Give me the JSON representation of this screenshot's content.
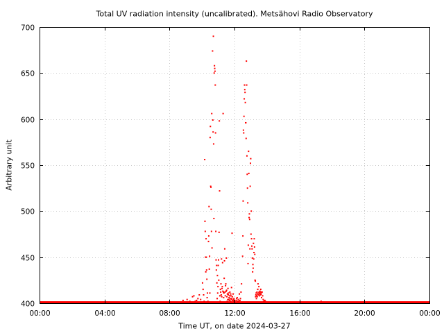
{
  "chart_data": {
    "type": "scatter",
    "title": "Total UV radiation intensity (uncalibrated). Metsähovi Radio Observatory",
    "xlabel": "Time UT, on date 2024-03-27",
    "ylabel": "Arbitrary unit",
    "xlim": [
      "00:00",
      "24:00"
    ],
    "ylim": [
      400,
      700
    ],
    "grid": true,
    "color": "#ff0000",
    "x_ticks": [
      "00:00",
      "04:00",
      "08:00",
      "12:00",
      "16:00",
      "20:00",
      "00:00"
    ],
    "y_ticks": [
      "400",
      "450",
      "500",
      "550",
      "600",
      "650",
      "700"
    ],
    "baseline": {
      "value": 401,
      "from": "00:00",
      "to": "24:00"
    },
    "points": [
      [
        "08:50",
        403
      ],
      [
        "09:05",
        404
      ],
      [
        "09:10",
        401
      ],
      [
        "09:15",
        402
      ],
      [
        "09:25",
        407
      ],
      [
        "09:30",
        408
      ],
      [
        "09:35",
        402
      ],
      [
        "09:40",
        403
      ],
      [
        "09:45",
        405
      ],
      [
        "09:50",
        409
      ],
      [
        "09:55",
        404
      ],
      [
        "10:00",
        401
      ],
      [
        "10:02",
        422
      ],
      [
        "10:04",
        415
      ],
      [
        "10:06",
        409
      ],
      [
        "10:08",
        402
      ],
      [
        "10:10",
        556
      ],
      [
        "10:11",
        489
      ],
      [
        "10:12",
        478
      ],
      [
        "10:13",
        450
      ],
      [
        "10:14",
        434
      ],
      [
        "10:15",
        470
      ],
      [
        "10:16",
        450
      ],
      [
        "10:17",
        436
      ],
      [
        "10:18",
        426
      ],
      [
        "10:19",
        406
      ],
      [
        "10:20",
        411
      ],
      [
        "10:22",
        402
      ],
      [
        "10:24",
        467
      ],
      [
        "10:25",
        473
      ],
      [
        "10:26",
        505
      ],
      [
        "10:27",
        437
      ],
      [
        "10:28",
        451
      ],
      [
        "10:29",
        411
      ],
      [
        "10:30",
        580
      ],
      [
        "10:31",
        592
      ],
      [
        "10:32",
        527
      ],
      [
        "10:33",
        526
      ],
      [
        "10:34",
        502
      ],
      [
        "10:35",
        478
      ],
      [
        "10:36",
        606
      ],
      [
        "10:37",
        460
      ],
      [
        "10:38",
        400
      ],
      [
        "10:39",
        674
      ],
      [
        "10:40",
        599
      ],
      [
        "10:41",
        586
      ],
      [
        "10:42",
        690
      ],
      [
        "10:43",
        573
      ],
      [
        "10:44",
        492
      ],
      [
        "10:45",
        650
      ],
      [
        "10:46",
        658
      ],
      [
        "10:47",
        655
      ],
      [
        "10:48",
        652
      ],
      [
        "10:49",
        637
      ],
      [
        "10:50",
        585
      ],
      [
        "10:51",
        478
      ],
      [
        "10:52",
        447
      ],
      [
        "10:53",
        436
      ],
      [
        "10:54",
        441
      ],
      [
        "10:55",
        422
      ],
      [
        "10:56",
        405
      ],
      [
        "10:57",
        430
      ],
      [
        "10:58",
        411
      ],
      [
        "10:59",
        418
      ],
      [
        "11:00",
        441
      ],
      [
        "11:01",
        447
      ],
      [
        "11:02",
        425
      ],
      [
        "11:03",
        477
      ],
      [
        "11:04",
        598
      ],
      [
        "11:05",
        522
      ],
      [
        "11:06",
        408
      ],
      [
        "11:07",
        402
      ],
      [
        "11:08",
        415
      ],
      [
        "11:09",
        412
      ],
      [
        "11:10",
        421
      ],
      [
        "11:11",
        409
      ],
      [
        "11:12",
        448
      ],
      [
        "11:13",
        407
      ],
      [
        "11:14",
        416
      ],
      [
        "11:15",
        418
      ],
      [
        "11:16",
        444
      ],
      [
        "11:17",
        413
      ],
      [
        "11:18",
        606
      ],
      [
        "11:19",
        412
      ],
      [
        "11:20",
        406
      ],
      [
        "11:21",
        411
      ],
      [
        "11:22",
        427
      ],
      [
        "11:23",
        446
      ],
      [
        "11:24",
        459
      ],
      [
        "11:25",
        412
      ],
      [
        "11:26",
        408
      ],
      [
        "11:27",
        419
      ],
      [
        "11:28",
        421
      ],
      [
        "11:29",
        413
      ],
      [
        "11:30",
        449
      ],
      [
        "11:31",
        414
      ],
      [
        "11:32",
        407
      ],
      [
        "11:33",
        402
      ],
      [
        "11:34",
        410
      ],
      [
        "11:35",
        404
      ],
      [
        "11:36",
        416
      ],
      [
        "11:37",
        409
      ],
      [
        "11:38",
        411
      ],
      [
        "11:39",
        404
      ],
      [
        "11:40",
        406
      ],
      [
        "11:41",
        403
      ],
      [
        "11:42",
        408
      ],
      [
        "11:43",
        412
      ],
      [
        "11:44",
        405
      ],
      [
        "11:45",
        402
      ],
      [
        "11:46",
        410
      ],
      [
        "11:47",
        408
      ],
      [
        "11:48",
        404
      ],
      [
        "11:49",
        417
      ],
      [
        "11:50",
        405
      ],
      [
        "11:51",
        476
      ],
      [
        "11:52",
        407
      ],
      [
        "11:53",
        403
      ],
      [
        "11:54",
        401
      ],
      [
        "11:55",
        410
      ],
      [
        "11:56",
        404
      ],
      [
        "11:57",
        402
      ],
      [
        "11:58",
        405
      ],
      [
        "11:59",
        403
      ],
      [
        "12:00",
        402
      ],
      [
        "12:02",
        401
      ],
      [
        "12:04",
        401
      ],
      [
        "12:06",
        403
      ],
      [
        "12:08",
        405
      ],
      [
        "12:10",
        406
      ],
      [
        "12:12",
        402
      ],
      [
        "12:14",
        404
      ],
      [
        "12:16",
        402
      ],
      [
        "12:18",
        410
      ],
      [
        "12:20",
        403
      ],
      [
        "12:22",
        405
      ],
      [
        "12:24",
        412
      ],
      [
        "12:26",
        421
      ],
      [
        "12:30",
        451
      ],
      [
        "12:31",
        473
      ],
      [
        "12:32",
        511
      ],
      [
        "12:33",
        588
      ],
      [
        "12:34",
        585
      ],
      [
        "12:35",
        603
      ],
      [
        "12:36",
        622
      ],
      [
        "12:37",
        637
      ],
      [
        "12:38",
        632
      ],
      [
        "12:39",
        629
      ],
      [
        "12:40",
        618
      ],
      [
        "12:41",
        596
      ],
      [
        "12:42",
        596
      ],
      [
        "12:43",
        579
      ],
      [
        "12:44",
        663
      ],
      [
        "12:45",
        637
      ],
      [
        "12:46",
        560
      ],
      [
        "12:47",
        540
      ],
      [
        "12:48",
        525
      ],
      [
        "12:49",
        509
      ],
      [
        "12:50",
        443
      ],
      [
        "12:51",
        463
      ],
      [
        "12:52",
        565
      ],
      [
        "12:53",
        541
      ],
      [
        "12:54",
        493
      ],
      [
        "12:55",
        497
      ],
      [
        "12:56",
        491
      ],
      [
        "12:57",
        459
      ],
      [
        "12:58",
        527
      ],
      [
        "12:59",
        552
      ],
      [
        "13:00",
        557
      ],
      [
        "13:01",
        475
      ],
      [
        "13:02",
        500
      ],
      [
        "13:03",
        470
      ],
      [
        "13:04",
        462
      ],
      [
        "13:05",
        459
      ],
      [
        "13:06",
        449
      ],
      [
        "13:07",
        434
      ],
      [
        "13:08",
        442
      ],
      [
        "13:09",
        438
      ],
      [
        "13:10",
        465
      ],
      [
        "13:11",
        448
      ],
      [
        "13:12",
        455
      ],
      [
        "13:13",
        470
      ],
      [
        "13:14",
        461
      ],
      [
        "13:15",
        453
      ],
      [
        "13:16",
        425
      ],
      [
        "13:17",
        424
      ],
      [
        "13:18",
        407
      ],
      [
        "13:19",
        409
      ],
      [
        "13:20",
        411
      ],
      [
        "13:21",
        405
      ],
      [
        "13:22",
        408
      ],
      [
        "13:23",
        412
      ],
      [
        "13:24",
        407
      ],
      [
        "13:25",
        410
      ],
      [
        "13:26",
        415
      ],
      [
        "13:27",
        421
      ],
      [
        "13:28",
        409
      ],
      [
        "13:29",
        411
      ],
      [
        "13:30",
        418
      ],
      [
        "13:31",
        412
      ],
      [
        "13:32",
        408
      ],
      [
        "13:33",
        410
      ],
      [
        "13:34",
        413
      ],
      [
        "13:35",
        411
      ],
      [
        "13:36",
        409
      ],
      [
        "13:37",
        415
      ],
      [
        "13:38",
        412
      ],
      [
        "13:39",
        410
      ],
      [
        "13:40",
        406
      ],
      [
        "13:42",
        412
      ],
      [
        "13:44",
        408
      ],
      [
        "13:46",
        404
      ],
      [
        "13:48",
        402
      ],
      [
        "13:50",
        402
      ],
      [
        "13:52",
        403
      ],
      [
        "13:54",
        402
      ],
      [
        "13:56",
        401
      ],
      [
        "17:20",
        402
      ]
    ]
  }
}
